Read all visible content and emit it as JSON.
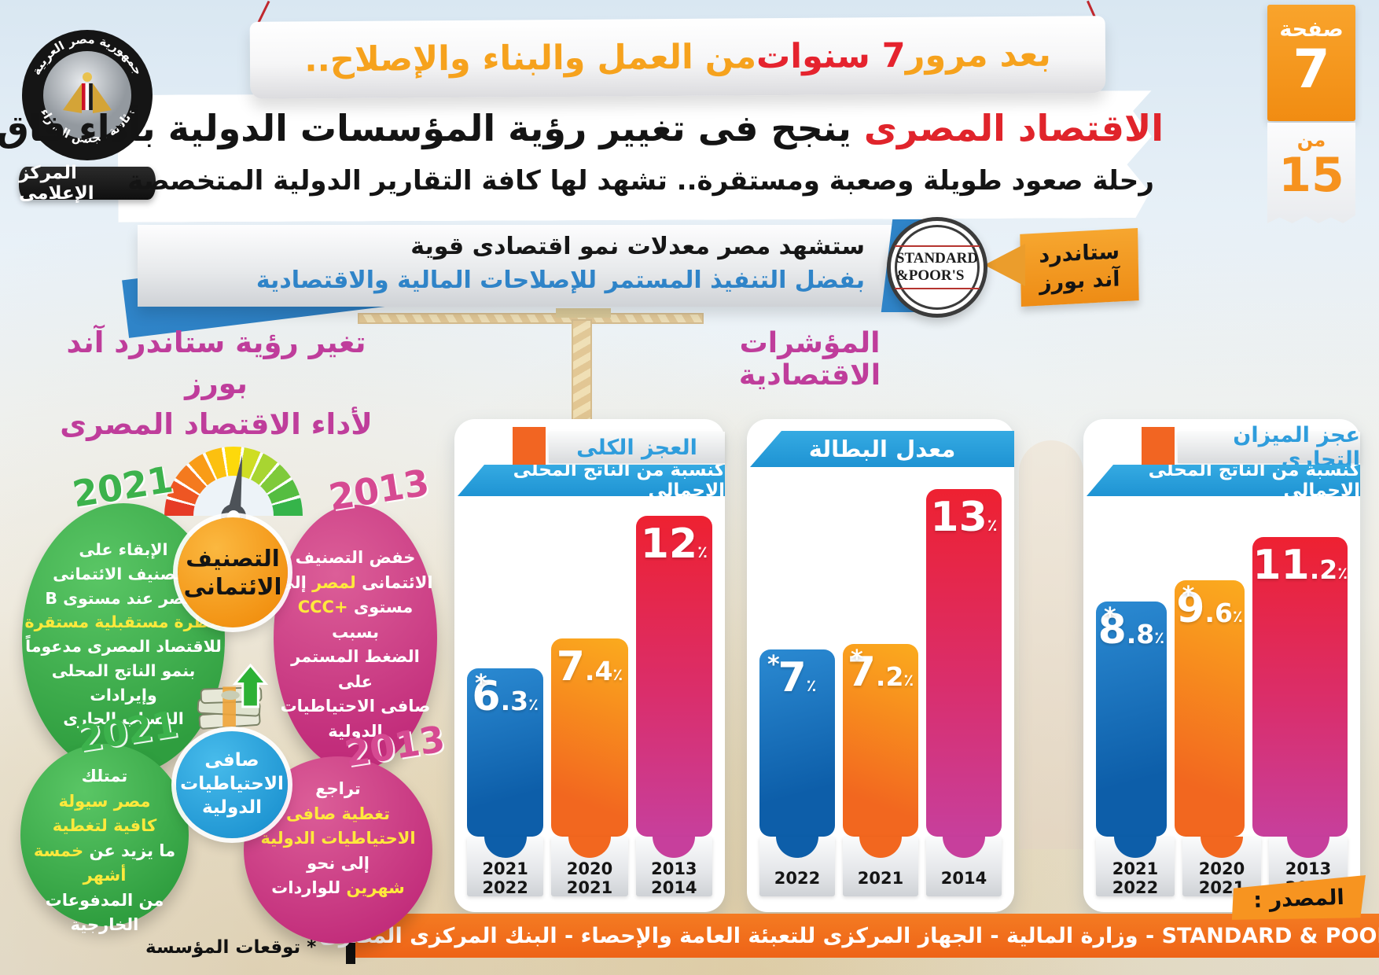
{
  "logo": {
    "top_text": "جمهورية مصر العربية",
    "bottom_text": "رئاسة مجلس الوزراء",
    "ribbon": "المركز الإعلامى"
  },
  "page_badge": {
    "page_label": "صفحة",
    "page_number": "7",
    "of_label": "من",
    "total": "15"
  },
  "top_banner": {
    "part1": "بعد مرور ",
    "part2": "7 سنوات",
    "part3": " من العمل والبناء والإصلاح.."
  },
  "headline": {
    "highlight": "الاقتصاد المصرى",
    "rest": " ينجح فى تغيير رؤية المؤسسات الدولية بأداء فاق التوقعات",
    "subtitle": "رحلة صعود طويلة وصعبة ومستقرة.. تشهد لها كافة التقارير الدولية المتخصصة"
  },
  "sp_quote": {
    "line1": "ستشهد مصر معدلات نمو اقتصادى قوية",
    "line2": "بفضل التنفيذ المستمر للإصلاحات المالية والاقتصادية",
    "logo_line1": "STANDARD",
    "logo_line2": "&POOR'S",
    "tag_line1": "ستاندرد",
    "tag_line2": "آند بورز"
  },
  "credit_section": {
    "title": [
      "تغير رؤية ستاندرد آند بورز",
      "لأداء الاقتصاد المصرى"
    ],
    "gauge_label": [
      "التصنيف",
      "الائتمانى"
    ],
    "reserves_label": [
      "صافى",
      "الاحتياطيات",
      "الدولية"
    ],
    "bubbles": [
      {
        "id": "credit-2021",
        "year": "2021",
        "theme": "green",
        "lines": [
          [
            {
              "t": "الإبقاء على",
              "c": "w"
            }
          ],
          [
            {
              "t": "التصنيف الائتمانى",
              "c": "w"
            }
          ],
          [
            {
              "t": "لمصر عند مستوى B",
              "c": "w"
            }
          ],
          [
            {
              "t": "بنظرة مستقبلية مستقرة",
              "c": "y"
            }
          ],
          [
            {
              "t": "للاقتصاد المصرى مدعوماً",
              "c": "w"
            }
          ],
          [
            {
              "t": "بنمو الناتج المحلى وإيرادات",
              "c": "w"
            }
          ],
          [
            {
              "t": "الحساب الجارى",
              "c": "w"
            }
          ]
        ]
      },
      {
        "id": "credit-2013",
        "year": "2013",
        "theme": "pink",
        "lines": [
          [
            {
              "t": "خفض التصنيف",
              "c": "w"
            }
          ],
          [
            {
              "t": "الائتمانى ",
              "c": "w"
            },
            {
              "t": "لمصر",
              "c": "y"
            },
            {
              "t": " إلى",
              "c": "w"
            }
          ],
          [
            {
              "t": "مستوى ",
              "c": "w"
            },
            {
              "t": "+CCC",
              "c": "y"
            },
            {
              "t": " بسبب",
              "c": "w"
            }
          ],
          [
            {
              "t": "الضغط المستمر على",
              "c": "w"
            }
          ],
          [
            {
              "t": "صافى الاحتياطيات",
              "c": "w"
            }
          ],
          [
            {
              "t": "الدولية",
              "c": "w"
            }
          ]
        ]
      },
      {
        "id": "reserves-2021",
        "year": "2021",
        "theme": "green",
        "lines": [
          [
            {
              "t": "تمتلك",
              "c": "w"
            }
          ],
          [
            {
              "t": "مصر سيولة",
              "c": "y"
            }
          ],
          [
            {
              "t": "كافية لتغطية",
              "c": "y"
            }
          ],
          [
            {
              "t": "ما يزيد عن ",
              "c": "w"
            },
            {
              "t": "خمسة أشهر",
              "c": "y"
            }
          ],
          [
            {
              "t": "من المدفوعات الخارجية",
              "c": "w"
            }
          ]
        ]
      },
      {
        "id": "reserves-2013",
        "year": "2013",
        "theme": "pink",
        "lines": [
          [
            {
              "t": "تراجع",
              "c": "w"
            }
          ],
          [
            {
              "t": "تغطية صافى",
              "c": "y"
            }
          ],
          [
            {
              "t": "الاحتياطيات الدولية",
              "c": "y"
            }
          ],
          [
            {
              "t": "إلى نحو",
              "c": "w"
            }
          ],
          [
            {
              "t": "شهرين",
              "c": "y"
            },
            {
              "t": " للواردات",
              "c": "w"
            }
          ]
        ]
      }
    ]
  },
  "indicators": {
    "title": "المؤشرات الاقتصادية",
    "percent_sign": "٪"
  },
  "chart_data": [
    {
      "type": "bar",
      "name": "overall-deficit",
      "title": "العجز الكلى",
      "subtitle": "كنسبة من الناتج المحلى الإجمالى",
      "unit": "%",
      "categories": [
        "2021/2022",
        "2020/2021",
        "2013/2014"
      ],
      "values": [
        6.3,
        7.4,
        12
      ],
      "labels": [
        "6.3",
        "7.4",
        "12"
      ],
      "starred": [
        true,
        false,
        false
      ],
      "bar_colors": [
        "blue",
        "orange",
        "pink"
      ],
      "ylim": [
        0,
        13
      ]
    },
    {
      "type": "bar",
      "name": "unemployment-rate",
      "title": "معدل البطالة",
      "subtitle": "",
      "unit": "%",
      "categories": [
        "2022",
        "2021",
        "2014"
      ],
      "values": [
        7,
        7.2,
        13
      ],
      "labels": [
        "7",
        "7.2",
        "13"
      ],
      "starred": [
        true,
        true,
        false
      ],
      "bar_colors": [
        "blue",
        "orange",
        "pink"
      ],
      "ylim": [
        0,
        13
      ]
    },
    {
      "type": "bar",
      "name": "trade-balance-deficit",
      "title": "عجز الميزان التجارى",
      "subtitle": "كنسبة من الناتج المحلى الإجمالى",
      "unit": "%",
      "categories": [
        "2021/2022",
        "2020/2021",
        "2013/2014"
      ],
      "values": [
        8.8,
        9.6,
        11.2
      ],
      "labels": [
        "8.8",
        "9.6",
        "11.2"
      ],
      "starred": [
        true,
        true,
        false
      ],
      "bar_colors": [
        "blue",
        "orange",
        "pink"
      ],
      "ylim": [
        0,
        13
      ]
    }
  ],
  "footnote": "* توقعات المؤسسة",
  "source": {
    "tag": "المصدر :",
    "text": "STANDARD & POOR'S - وزارة المالية - الجهاز المركزى للتعبئة العامة والإحصاء - البنك المركزى المصرى"
  },
  "colors": {
    "accent_orange": "#f6921e",
    "accent_red": "#e5232e",
    "banner_blue": "#2ea7e0",
    "bar_blue": "#0d5ea9",
    "bar_orange": "#f2671f",
    "bar_pink_top": "#ee2131",
    "bar_pink_bottom": "#c73f9c",
    "magenta": "#bf3d9b",
    "bubble_green": "#2f9e3f",
    "bubble_pink": "#c22d7b",
    "yellow_text": "#ffe93c"
  }
}
